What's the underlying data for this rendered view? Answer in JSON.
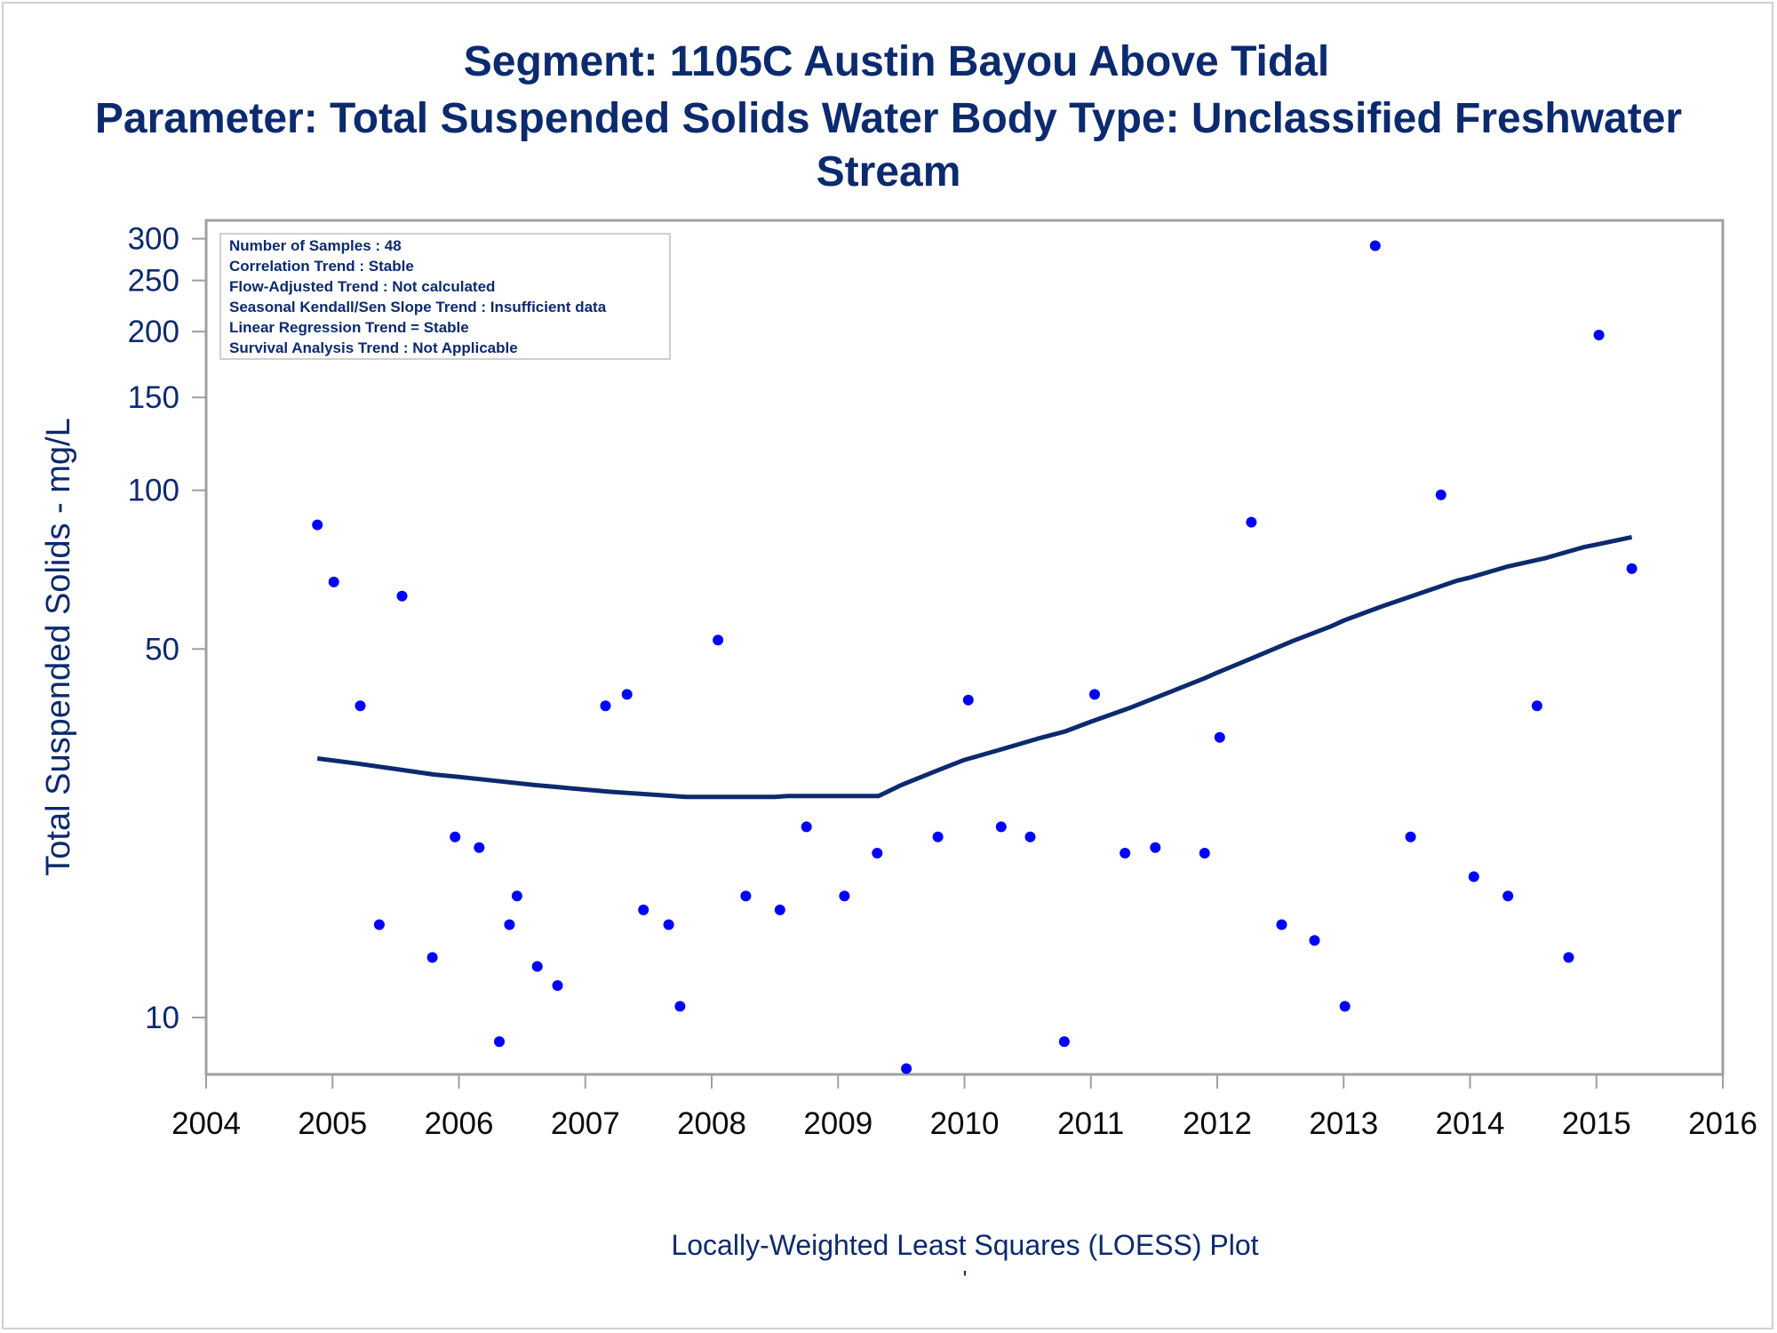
{
  "titles": {
    "line1": "Segment: 1105C  Austin Bayou Above Tidal",
    "line2": "Parameter: Total Suspended Solids   Water Body Type: Unclassified Freshwater",
    "line3": "Stream"
  },
  "stats": [
    "Number of Samples : 48",
    "Correlation Trend : Stable",
    "Flow-Adjusted Trend : Not calculated",
    "Seasonal Kendall/Sen Slope Trend : Insufficient data",
    "Linear Regression Trend = Stable",
    "Survival Analysis Trend : Not Applicable"
  ],
  "footnote_mark": "'",
  "colors": {
    "text": "#0c2a6e",
    "points": "#0000ff",
    "loess": "#0c2a6e",
    "axis": "#a0a0a0"
  },
  "chart_data": {
    "type": "scatter",
    "title": "Segment: 1105C  Austin Bayou Above Tidal",
    "subtitle": "Parameter: Total Suspended Solids   Water Body Type: Unclassified Freshwater Stream",
    "xlabel": "Locally-Weighted Least Squares (LOESS) Plot",
    "ylabel": "Total Suspended Solids - mg/L",
    "y_scale": "log",
    "xlim": [
      2004,
      2016
    ],
    "ylim": [
      7.8,
      325
    ],
    "x_ticks": [
      2004,
      2005,
      2006,
      2007,
      2008,
      2009,
      2010,
      2011,
      2012,
      2013,
      2014,
      2015,
      2016
    ],
    "y_ticks": [
      10,
      50,
      100,
      150,
      200,
      250,
      300
    ],
    "grid": false,
    "legend": "stats box top-left",
    "series": [
      {
        "kind": "points",
        "x": [
          2004.88,
          2005.01,
          2005.22,
          2005.37,
          2005.55,
          2005.79,
          2005.97,
          2006.16,
          2006.32,
          2006.4,
          2006.46,
          2006.62,
          2006.78,
          2007.16,
          2007.33,
          2007.46,
          2007.66,
          2007.75,
          2008.05,
          2008.27,
          2008.54,
          2008.75,
          2009.05,
          2009.31,
          2009.54,
          2009.79,
          2010.03,
          2010.29,
          2010.52,
          2010.79,
          2011.03,
          2011.27,
          2011.51,
          2011.9,
          2012.02,
          2012.27,
          2012.51,
          2012.77,
          2013.01,
          2013.25,
          2013.53,
          2013.77,
          2014.03,
          2014.3,
          2014.53,
          2014.78,
          2015.02,
          2015.28
        ],
        "y": [
          86,
          67,
          39,
          15,
          63,
          13,
          22,
          21,
          9,
          15,
          17,
          12.5,
          11.5,
          39,
          41,
          16,
          15,
          10.5,
          52,
          17,
          16,
          23,
          17,
          20.5,
          8,
          22,
          40,
          23,
          22,
          9,
          41,
          20.5,
          21,
          20.5,
          34,
          87,
          15,
          14,
          10.5,
          291,
          22,
          98,
          18.5,
          17,
          39,
          13,
          197,
          71
        ]
      },
      {
        "kind": "line",
        "name": "",
        "x": [
          2004.88,
          2005.2,
          2005.5,
          2005.8,
          2006.0,
          2006.3,
          2006.6,
          2006.9,
          2007.2,
          2007.5,
          2007.8,
          2008.0,
          2008.5,
          2008.6,
          2009.0,
          2009.32,
          2009.5,
          2009.8,
          2010.0,
          2010.3,
          2010.6,
          2010.8,
          2011.0,
          2011.3,
          2011.6,
          2011.9,
          2012.0,
          2012.3,
          2012.6,
          2012.9,
          2013.0,
          2013.3,
          2013.6,
          2013.9,
          2014.0,
          2014.3,
          2014.6,
          2014.9,
          2015.0,
          2015.28
        ],
        "y": [
          31,
          30.3,
          29.6,
          28.9,
          28.6,
          28.1,
          27.6,
          27.2,
          26.8,
          26.5,
          26.2,
          26.2,
          26.2,
          26.3,
          26.3,
          26.3,
          27.6,
          29.5,
          30.8,
          32.3,
          33.9,
          34.9,
          36.4,
          38.6,
          41.2,
          44.0,
          45.1,
          48.3,
          51.8,
          55.2,
          56.6,
          60.2,
          63.7,
          67.4,
          68.3,
          71.7,
          74.4,
          78.0,
          78.9,
          81.5
        ]
      }
    ]
  }
}
